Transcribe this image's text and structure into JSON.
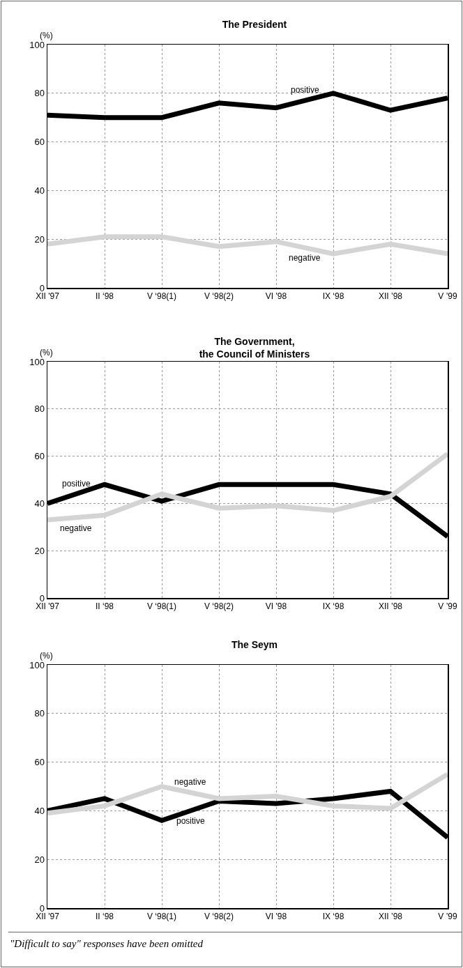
{
  "chart_data": [
    {
      "type": "line",
      "title": "The President",
      "ylabel": "(%)",
      "categories": [
        "XII '97",
        "II ‘98",
        "V ‘98(1)",
        "V ‘98(2)",
        "VI '98",
        "IX ‘98",
        "XII ’98",
        "V ’99"
      ],
      "series": [
        {
          "name": "positive",
          "color": "#000000",
          "values": [
            71,
            70,
            70,
            76,
            74,
            80,
            73,
            78
          ]
        },
        {
          "name": "negative",
          "color": "#d4d4d4",
          "values": [
            18,
            21,
            21,
            17,
            19,
            14,
            18,
            14
          ]
        }
      ],
      "ylim": [
        0,
        100
      ],
      "yticks": [
        0,
        20,
        40,
        60,
        80,
        100
      ],
      "grid": true,
      "line_style": "solid"
    },
    {
      "type": "line",
      "title": "The Government,\nthe Council of Ministers",
      "ylabel": "(%)",
      "categories": [
        "XII '97",
        "II ‘98",
        "V ‘98(1)",
        "V ‘98(2)",
        "VI '98",
        "IX ‘98",
        "XII ’98",
        "V ’99"
      ],
      "series": [
        {
          "name": "positive",
          "color": "#000000",
          "values": [
            40,
            48,
            41,
            48,
            48,
            48,
            44,
            26
          ]
        },
        {
          "name": "negative",
          "color": "#d4d4d4",
          "values": [
            33,
            35,
            44,
            38,
            39,
            37,
            43,
            61
          ]
        }
      ],
      "ylim": [
        0,
        100
      ],
      "yticks": [
        0,
        20,
        40,
        60,
        80,
        100
      ],
      "grid": true,
      "line_style": "solid"
    },
    {
      "type": "line",
      "title": "The Seym",
      "ylabel": "(%)",
      "categories": [
        "XII '97",
        "II ‘98",
        "V ‘98(1)",
        "V ‘98(2)",
        "VI '98",
        "IX ‘98",
        "XII ’98",
        "V ’99"
      ],
      "series": [
        {
          "name": "positive",
          "color": "#000000",
          "values": [
            40,
            45,
            36,
            44,
            43,
            45,
            48,
            29
          ]
        },
        {
          "name": "negative",
          "color": "#d4d4d4",
          "values": [
            39,
            42,
            50,
            45,
            46,
            42,
            41,
            55
          ]
        }
      ],
      "ylim": [
        0,
        100
      ],
      "yticks": [
        0,
        20,
        40,
        60,
        80,
        100
      ],
      "grid": true,
      "line_style": "solid",
      "annotations": [
        "\"Difficult to say\" responses have been omitted"
      ]
    }
  ]
}
